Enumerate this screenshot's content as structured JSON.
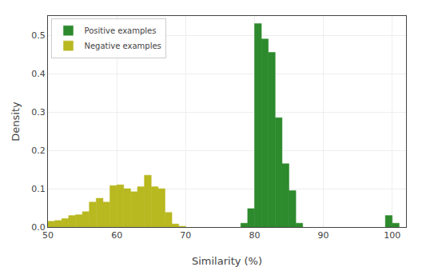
{
  "chart_data": {
    "type": "bar",
    "xlabel": "Similarity (%)",
    "ylabel": "Density",
    "bin_width": 1.0,
    "series": [
      {
        "name": "Negative examples",
        "color": "#b8b820",
        "x": [
          50,
          51,
          52,
          53,
          54,
          55,
          56,
          57,
          58,
          59,
          60,
          61,
          62,
          63,
          64,
          65,
          66,
          67,
          68,
          69
        ],
        "values": [
          0.015,
          0.017,
          0.022,
          0.03,
          0.032,
          0.04,
          0.065,
          0.075,
          0.065,
          0.108,
          0.11,
          0.1,
          0.092,
          0.105,
          0.135,
          0.105,
          0.1,
          0.038,
          0.008,
          0.002
        ]
      },
      {
        "name": "Positive examples",
        "color": "#2d8a2d",
        "x": [
          78,
          79,
          80,
          81,
          82,
          83,
          84,
          99,
          100,
          85,
          86
        ],
        "values": [
          0.01,
          0.048,
          0.53,
          0.49,
          0.455,
          0.285,
          0.165,
          0.03,
          0.01,
          0.095,
          0.01
        ]
      }
    ],
    "xlim": [
      50,
      102
    ],
    "ylim": [
      0,
      0.55
    ],
    "xticks": [
      50,
      60,
      70,
      80,
      90,
      100
    ],
    "yticks": [
      {
        "value": 0.0,
        "label": "0.0"
      },
      0.1,
      0.2,
      0.3,
      0.4,
      0.5
    ],
    "grid": true,
    "legend": "upper left"
  }
}
